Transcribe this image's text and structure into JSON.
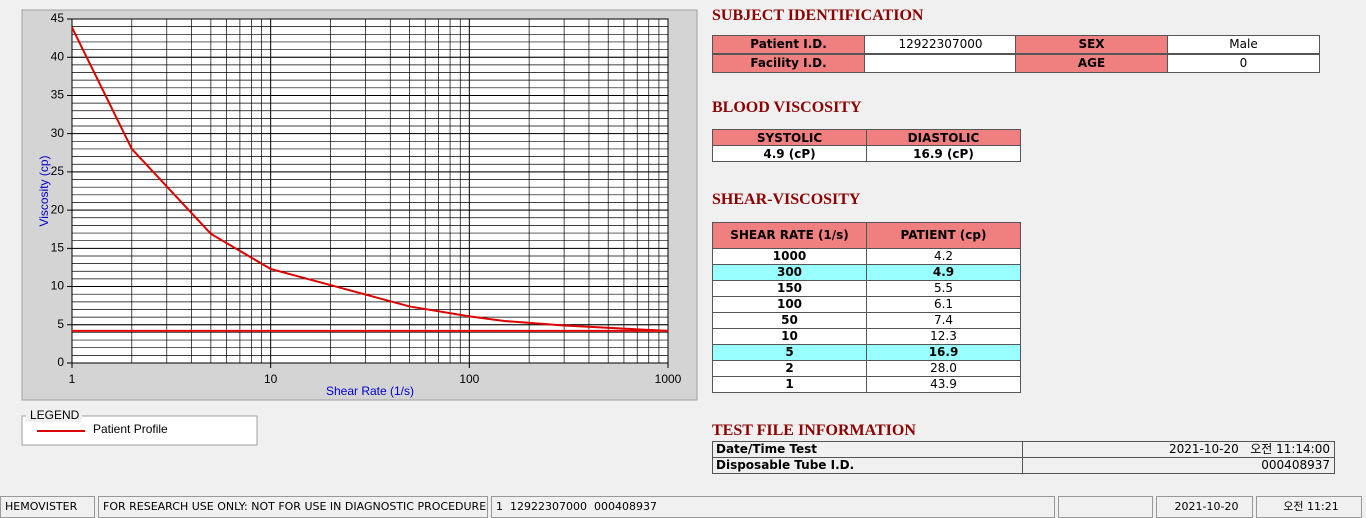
{
  "chart_data": {
    "type": "line",
    "x_label": "Shear Rate (1/s)",
    "y_label": "Viscosity (cp)",
    "legend_title": "LEGEND",
    "xscale": "log",
    "xlim": [
      1,
      1000
    ],
    "xticks": [
      1,
      10,
      100,
      1000
    ],
    "ylim": [
      0,
      45
    ],
    "yticks": [
      0,
      5,
      10,
      15,
      20,
      25,
      30,
      35,
      40,
      45
    ],
    "grid": true,
    "series": [
      {
        "name": "Patient Profile",
        "color": "#dd0000",
        "x": [
          1,
          2,
          5,
          10,
          50,
          100,
          150,
          300,
          1000
        ],
        "values": [
          43.9,
          28,
          16.9,
          12.3,
          7.4,
          6.1,
          5.5,
          4.9,
          4.2
        ]
      },
      {
        "color": "#dd0000",
        "x": [
          1,
          1000
        ],
        "values": [
          4.2,
          4.2
        ]
      }
    ]
  },
  "subject_identification": {
    "title": "SUBJECT IDENTIFICATION",
    "fields": [
      {
        "label": "Patient I.D.",
        "value": "12922307000"
      },
      {
        "label": "SEX",
        "value": "Male"
      },
      {
        "label": "Facility I.D.",
        "value": null
      },
      {
        "label": "AGE",
        "value": "0"
      }
    ]
  },
  "blood_viscosity": {
    "title": "BLOOD VISCOSITY",
    "headers": [
      "SYSTOLIC",
      "DIASTOLIC"
    ],
    "values": [
      "4.9 (cP)",
      "16.9 (cP)"
    ]
  },
  "shear_viscosity": {
    "title": "SHEAR-VISCOSITY",
    "headers": [
      "SHEAR RATE (1/s)",
      "PATIENT (cp)"
    ],
    "rows": [
      [
        "1000",
        "4.2"
      ],
      [
        "300",
        "4.9"
      ],
      [
        "150",
        "5.5"
      ],
      [
        "100",
        "6.1"
      ],
      [
        "50",
        "7.4"
      ],
      [
        "10",
        "12.3"
      ],
      [
        "5",
        "16.9"
      ],
      [
        "2",
        "28.0"
      ],
      [
        "1",
        "43.9"
      ]
    ],
    "highlighted_rows": [
      1,
      6
    ]
  },
  "test_file": {
    "title": "TEST FILE INFORMATION",
    "rows": [
      [
        "Date/Time Test",
        "2021-10-20   오전 11:14:00"
      ],
      [
        "Disposable Tube I.D.",
        "000408937"
      ]
    ]
  },
  "status_bar": [
    "HEMOVISTER",
    "FOR RESEARCH USE ONLY: NOT FOR USE IN DIAGNOSTIC PROCEDURES",
    "1  12922307000  000408937",
    null,
    "2021-10-20",
    "오전 11:21"
  ]
}
